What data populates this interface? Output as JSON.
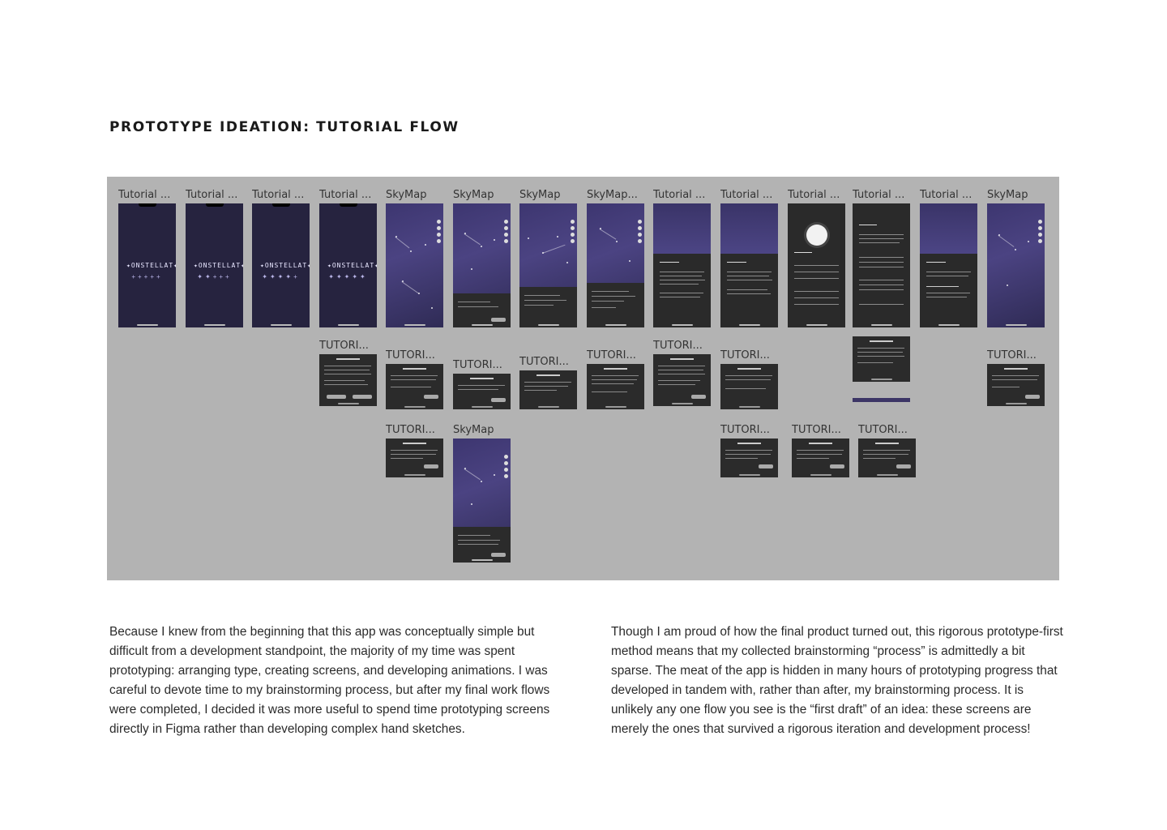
{
  "heading": "PROTOTYPE IDEATION: TUTORIAL FLOW",
  "board": {
    "frame_labels": [
      "Tutorial ...",
      "Tutorial ...",
      "Tutorial ...",
      "Tutorial ...",
      "SkyMap",
      "SkyMap",
      "SkyMap",
      "SkyMap...",
      "Tutorial ...",
      "Tutorial ...",
      "Tutorial ...",
      "Tutorial ...",
      "Tutorial ...",
      "SkyMap",
      "TUTORI...",
      "TUTORI...",
      "TUTORI...",
      "TUTORI...",
      "TUTORI...",
      "TUTORI...",
      "TUTORI...",
      "TUTORI...",
      "TUTORI...",
      "SkyMap",
      "TUTORI...",
      "TUTORI...",
      "TUTORI..."
    ]
  },
  "body": {
    "left": "Because I knew from the beginning that this app was conceptually simple but difficult from a development standpoint, the majority of my time was spent prototyping: arranging type, creating screens, and developing animations. I was careful to devote time to my brainstorming process, but after my final work flows were completed, I decided it was more useful to spend time prototyping screens directly in Figma rather than developing complex hand sketches.",
    "right": "Though I am proud of how the final product turned out, this rigorous prototype-first method means that my collected brainstorming “process” is admittedly a bit sparse. The meat of the app is hidden in many hours of prototyping progress that developed in tandem with, rather than after, my brainstorming process. It is unlikely any one flow you see is the “first draft” of an idea: these screens are merely the ones that survived a rigorous iteration and development process!"
  }
}
